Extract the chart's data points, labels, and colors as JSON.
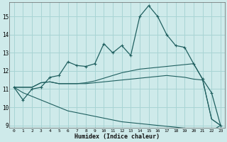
{
  "xlabel": "Humidex (Indice chaleur)",
  "bg_color": "#ceeaea",
  "grid_color": "#a8d4d4",
  "line_color": "#206060",
  "x_data": [
    0,
    1,
    2,
    3,
    4,
    5,
    6,
    7,
    8,
    9,
    10,
    11,
    12,
    13,
    14,
    15,
    16,
    17,
    18,
    19,
    20,
    21,
    22,
    23
  ],
  "series1": [
    11.1,
    10.4,
    11.0,
    11.1,
    11.65,
    11.75,
    12.5,
    12.3,
    12.25,
    12.4,
    13.5,
    13.0,
    13.4,
    12.85,
    15.0,
    15.6,
    15.0,
    14.0,
    13.4,
    13.3,
    12.4,
    11.55,
    10.8,
    9.0
  ],
  "series_down": [
    11.1,
    10.8,
    10.6,
    10.4,
    10.2,
    10.0,
    9.8,
    9.7,
    9.6,
    9.5,
    9.4,
    9.3,
    9.2,
    9.15,
    9.1,
    9.05,
    9.0,
    8.95,
    8.9,
    8.85,
    8.8,
    8.75,
    8.7,
    9.0
  ],
  "series_mid": [
    11.1,
    11.1,
    11.1,
    11.35,
    11.4,
    11.3,
    11.3,
    11.3,
    11.3,
    11.35,
    11.4,
    11.45,
    11.5,
    11.55,
    11.6,
    11.65,
    11.7,
    11.75,
    11.7,
    11.65,
    11.55,
    11.5,
    9.35,
    9.0
  ],
  "series_top": [
    11.1,
    11.1,
    11.1,
    11.35,
    11.4,
    11.3,
    11.3,
    11.3,
    11.35,
    11.45,
    11.6,
    11.75,
    11.9,
    12.0,
    12.1,
    12.15,
    12.2,
    12.25,
    12.3,
    12.35,
    12.4,
    11.55,
    9.35,
    9.0
  ],
  "ylim_min": 9,
  "ylim_max": 15.8,
  "xlim_min": -0.5,
  "xlim_max": 23.5,
  "yticks": [
    9,
    10,
    11,
    12,
    13,
    14,
    15
  ],
  "xticks": [
    0,
    1,
    2,
    3,
    4,
    5,
    6,
    7,
    8,
    9,
    10,
    11,
    12,
    13,
    14,
    15,
    16,
    17,
    18,
    19,
    20,
    21,
    22,
    23
  ]
}
